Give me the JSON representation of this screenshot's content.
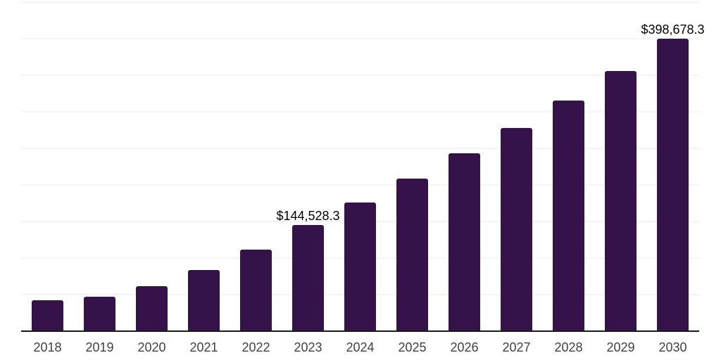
{
  "chart_data": {
    "type": "bar",
    "title": "",
    "xlabel": "",
    "ylabel": "",
    "categories": [
      "2018",
      "2019",
      "2020",
      "2021",
      "2022",
      "2023",
      "2024",
      "2025",
      "2026",
      "2027",
      "2028",
      "2029",
      "2030"
    ],
    "values": [
      41000,
      46500,
      61000,
      83000,
      111000,
      144528.3,
      175500,
      208000,
      242000,
      276500,
      314000,
      354500,
      398678.3
    ],
    "value_labels": {
      "2023": "$144,528.3",
      "2030": "$398,678.3"
    },
    "ylim": [
      0,
      450000
    ],
    "gridline_interval": 50000,
    "grid": "horizontal-only",
    "legend": "none",
    "y_axis_tick_labels": "none",
    "bar_color": "#35124A",
    "axis_line_color": "#1A1A1A",
    "gridline_color": "#F4F4F4",
    "tick_label_color": "#414141",
    "value_label_color": "#000000",
    "background_color": "#FFFFFF"
  }
}
